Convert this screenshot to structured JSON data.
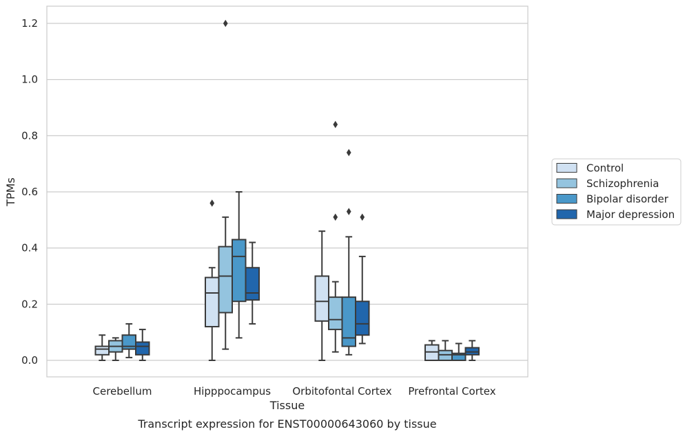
{
  "caption": "Transcript expression for ENST00000643060 by tissue",
  "chart_data": {
    "type": "box",
    "xlabel": "Tissue",
    "ylabel": "TPMs",
    "ylim": [
      -0.06,
      1.26
    ],
    "yticks": [
      0.0,
      0.2,
      0.4,
      0.6,
      0.8,
      1.0,
      1.2
    ],
    "ytick_labels": [
      "0.0",
      "0.2",
      "0.4",
      "0.6",
      "0.8",
      "1.0",
      "1.2"
    ],
    "grid": "horizontal",
    "legend_position": "right",
    "categories": [
      "Cerebellum",
      "Hipppocampus",
      "Orbitofontal Cortex",
      "Prefrontal Cortex"
    ],
    "series": [
      {
        "name": "Control",
        "color": "#d0e1f2",
        "boxes": [
          {
            "whislo": 0.0,
            "q1": 0.02,
            "med": 0.04,
            "q3": 0.05,
            "whishi": 0.09,
            "fliers": []
          },
          {
            "whislo": 0.0,
            "q1": 0.12,
            "med": 0.24,
            "q3": 0.295,
            "whishi": 0.33,
            "fliers": [
              0.56
            ]
          },
          {
            "whislo": 0.0,
            "q1": 0.14,
            "med": 0.21,
            "q3": 0.3,
            "whishi": 0.46,
            "fliers": []
          },
          {
            "whislo": 0.0,
            "q1": 0.0,
            "med": 0.03,
            "q3": 0.055,
            "whishi": 0.07,
            "fliers": []
          }
        ]
      },
      {
        "name": "Schizophrenia",
        "color": "#94c4df",
        "boxes": [
          {
            "whislo": 0.0,
            "q1": 0.03,
            "med": 0.05,
            "q3": 0.07,
            "whishi": 0.08,
            "fliers": []
          },
          {
            "whislo": 0.04,
            "q1": 0.17,
            "med": 0.3,
            "q3": 0.405,
            "whishi": 0.51,
            "fliers": [
              1.2
            ]
          },
          {
            "whislo": 0.03,
            "q1": 0.11,
            "med": 0.145,
            "q3": 0.225,
            "whishi": 0.28,
            "fliers": [
              0.84,
              0.51
            ]
          },
          {
            "whislo": 0.0,
            "q1": 0.0,
            "med": 0.02,
            "q3": 0.035,
            "whishi": 0.07,
            "fliers": []
          }
        ]
      },
      {
        "name": "Bipolar disorder",
        "color": "#4a98c9",
        "boxes": [
          {
            "whislo": 0.01,
            "q1": 0.04,
            "med": 0.05,
            "q3": 0.09,
            "whishi": 0.13,
            "fliers": []
          },
          {
            "whislo": 0.08,
            "q1": 0.21,
            "med": 0.37,
            "q3": 0.43,
            "whishi": 0.6,
            "fliers": []
          },
          {
            "whislo": 0.02,
            "q1": 0.05,
            "med": 0.08,
            "q3": 0.225,
            "whishi": 0.44,
            "fliers": [
              0.74,
              0.53
            ]
          },
          {
            "whislo": 0.0,
            "q1": 0.0,
            "med": 0.02,
            "q3": 0.025,
            "whishi": 0.06,
            "fliers": []
          }
        ]
      },
      {
        "name": "Major depression",
        "color": "#2166ac",
        "boxes": [
          {
            "whislo": 0.0,
            "q1": 0.02,
            "med": 0.05,
            "q3": 0.065,
            "whishi": 0.11,
            "fliers": []
          },
          {
            "whislo": 0.13,
            "q1": 0.215,
            "med": 0.24,
            "q3": 0.33,
            "whishi": 0.42,
            "fliers": []
          },
          {
            "whislo": 0.06,
            "q1": 0.09,
            "med": 0.13,
            "q3": 0.21,
            "whishi": 0.37,
            "fliers": [
              0.51
            ]
          },
          {
            "whislo": 0.0,
            "q1": 0.02,
            "med": 0.03,
            "q3": 0.045,
            "whishi": 0.07,
            "fliers": []
          }
        ]
      }
    ]
  }
}
